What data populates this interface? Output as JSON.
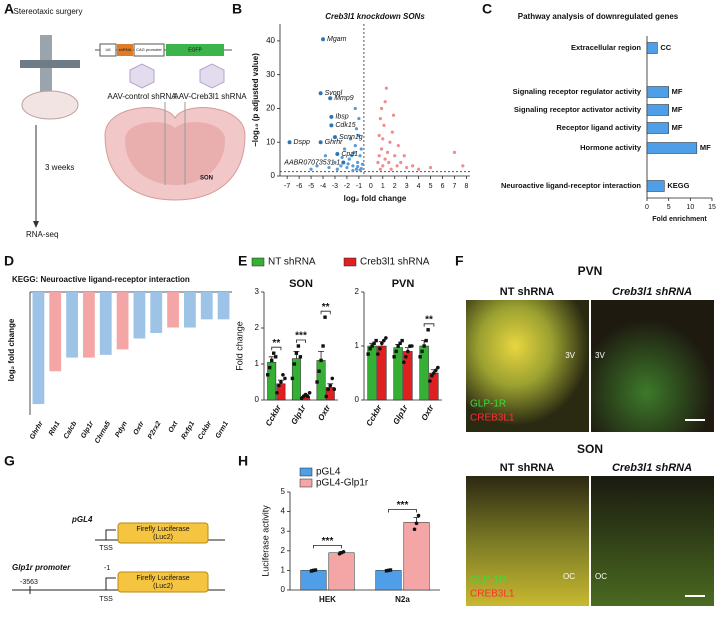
{
  "panel_labels": [
    "A",
    "B",
    "C",
    "D",
    "E",
    "F",
    "G",
    "H"
  ],
  "panel_a": {
    "surgery": "Stereotaxic surgery",
    "duration": "3 weeks",
    "readout": "RNA-seq",
    "construct": [
      "U6",
      "shRNA",
      "CAG promoter",
      "EGFP"
    ],
    "virus_control": "AAV-control shRNA",
    "virus_kd": "AAV-Creb3l1 shRNA",
    "region": "SON"
  },
  "panel_f": {
    "pvn": {
      "title": "PVN",
      "columns": [
        "NT shRNA",
        "Creb3l1 shRNA"
      ],
      "landmarks": [
        "3V",
        "3V"
      ],
      "stains": [
        "GLP-1R",
        "CREB3L1"
      ]
    },
    "son": {
      "title": "SON",
      "columns": [
        "NT shRNA",
        "Creb3l1 shRNA"
      ],
      "landmarks": [
        "OC",
        "OC"
      ],
      "stains": [
        "GLP-1R",
        "CREB3L1"
      ]
    }
  },
  "panel_g": {
    "constructs": [
      {
        "name": "pGL4",
        "site": "TSS",
        "gene": "Firefly Luciferase",
        "subunit": "(Luc2)"
      },
      {
        "name": "Glp1r promoter",
        "start": "-3563",
        "end": "-1",
        "site": "TSS",
        "gene": "Firefly Luciferase",
        "subunit": "(Luc2)"
      }
    ]
  },
  "chart_data": [
    {
      "type": "scatter",
      "title": "Creb3l1 knockdown SONs",
      "xlabel": "log₂ fold change",
      "ylabel": "−log₁₀ (p adjusted value)",
      "xlim": [
        -7.6,
        8.3
      ],
      "ylim": [
        0,
        45
      ],
      "xticks": [
        -7,
        -6,
        -5,
        -4,
        -3,
        -2,
        -1,
        0,
        1,
        2,
        3,
        4,
        5,
        6,
        7,
        8
      ],
      "yticks": [
        0,
        10,
        20,
        30,
        40
      ],
      "threshold_x": -0.58,
      "threshold_y": 1.3,
      "series": [
        {
          "color": "#5b9bd5",
          "x": [
            -1.2,
            -1.5,
            -0.9,
            -2,
            -1.8,
            -1.1,
            -2.5,
            -0.8,
            -1.4,
            -1.3,
            -1.6,
            -2.2,
            -1,
            -1.2,
            -0.9,
            -3,
            -2.8,
            -3.5,
            -1.7,
            -0.7,
            -1,
            -1.5,
            -2.4,
            -1.9,
            -0.8,
            -4.5,
            -5,
            -3.8,
            -1.3,
            -1.1
          ],
          "y": [
            2,
            3,
            1.8,
            2.5,
            5,
            4,
            3,
            2.2,
            7,
            9,
            6,
            8,
            12,
            14,
            6,
            4,
            2,
            2.5,
            11,
            3.5,
            17,
            1.6,
            5.5,
            3.6,
            8,
            3,
            2,
            6,
            20,
            2.8
          ]
        },
        {
          "color": "#f28b8b",
          "x": [
            0.8,
            1,
            1.2,
            0.9,
            1.5,
            0.7,
            1.1,
            1.3,
            0.9,
            1.6,
            2,
            2.2,
            1.4,
            0.8,
            1.8,
            2.5,
            3,
            2.8,
            1.2,
            0.7,
            3.5,
            4,
            5,
            7,
            7.7,
            1.9,
            2.3,
            0.6,
            1,
            1.7
          ],
          "y": [
            2,
            3,
            5,
            8,
            4,
            12,
            15,
            26,
            20,
            10,
            6,
            3,
            7,
            17,
            13,
            4,
            2.5,
            6,
            22,
            6,
            3,
            2,
            2.5,
            7,
            3,
            18,
            9,
            4,
            11,
            2
          ]
        }
      ],
      "genes": {
        "color": "#2e75b6",
        "labels": [
          "Mgam",
          "Svopl",
          "Mmp9",
          "Ibsp",
          "Cdk15",
          "Scnn1g",
          "Ghrhr",
          "Dspp",
          "Cpa1",
          "AABR07073531.1"
        ],
        "x": [
          -4,
          -4.2,
          -3.4,
          -3.3,
          -3.3,
          -3,
          -4.2,
          -6.8,
          -2.8,
          -2.3
        ],
        "y": [
          40.5,
          24.5,
          23,
          17.5,
          15,
          11.5,
          10,
          10,
          6.5,
          4
        ]
      }
    },
    {
      "type": "barh",
      "title": "Pathway analysis of downregulated genes",
      "xlabel": "Fold enrichment",
      "color": "#4f9ee8",
      "categories": [
        "Extracellular region",
        "Signaling receptor regulator activity",
        "Signaling receptor activator activity",
        "Receptor ligand activity",
        "Hormone activity",
        "Neuroactive ligand-receptor interaction"
      ],
      "values": [
        2.4,
        5,
        5,
        5,
        11.5,
        4
      ],
      "tags": [
        "CC",
        "MF",
        "MF",
        "MF",
        "MF",
        "KEGG"
      ],
      "xlim": [
        0,
        15
      ],
      "xticks": [
        0,
        5,
        10,
        15
      ]
    },
    {
      "type": "bar",
      "title": "KEGG: Neuroactive ligand-receptor interaction",
      "ylabel": "log₂ fold change",
      "categories": [
        "Ghrhr",
        "Rln1",
        "Calcb",
        "Glp1r",
        "Chrna5",
        "Pdyn",
        "Oxtr",
        "P2rx2",
        "Oxt",
        "Rxfp1",
        "Cckbr",
        "Grm1"
      ],
      "values": [
        -4.1,
        -2.9,
        -2.4,
        -2.4,
        -2.3,
        -2.1,
        -1.7,
        -1.5,
        -1.3,
        -1.3,
        -1,
        -1
      ],
      "colors": [
        "#9dc3e6",
        "#f4a6a6",
        "#9dc3e6",
        "#f4a6a6",
        "#9dc3e6",
        "#f4a6a6",
        "#9dc3e6",
        "#9dc3e6",
        "#f4a6a6",
        "#9dc3e6",
        "#9dc3e6",
        "#9dc3e6"
      ],
      "ylim": [
        -4.5,
        0
      ]
    },
    {
      "type": "grouped",
      "title": "SON",
      "ylabel": "Fold change",
      "categories": [
        "Cckbr",
        "Glp1r",
        "Oxtr"
      ],
      "ylim": [
        0,
        3
      ],
      "yticks": [
        0,
        1,
        2,
        3
      ],
      "series": [
        {
          "name": "NT shRNA",
          "color": "#35b035",
          "values": [
            1.05,
            1.15,
            1.1
          ],
          "errors": [
            0.15,
            0.2,
            0.25
          ],
          "points": [
            [
              0.7,
              0.9,
              1.1,
              1.3,
              1.2
            ],
            [
              0.6,
              1,
              1.3,
              1.5,
              1.2
            ],
            [
              0.5,
              0.8,
              1.1,
              1.5,
              2.3
            ]
          ]
        },
        {
          "name": "Creb3l1 shRNA",
          "color": "#e02020",
          "values": [
            0.45,
            0.1,
            0.35
          ],
          "errors": [
            0.1,
            0.05,
            0.1
          ],
          "points": [
            [
              0.2,
              0.4,
              0.5,
              0.7,
              0.6
            ],
            [
              0.05,
              0.1,
              0.15,
              0.1,
              0.2
            ],
            [
              0.1,
              0.3,
              0.4,
              0.6,
              0.3
            ]
          ]
        }
      ],
      "significance": [
        "**",
        "***",
        "**"
      ]
    },
    {
      "type": "grouped",
      "title": "PVN",
      "categories": [
        "Cckbr",
        "Glp1r",
        "Oxtr"
      ],
      "ylim": [
        0,
        2
      ],
      "yticks": [
        0,
        1,
        2
      ],
      "series": [
        {
          "color": "#35b035",
          "values": [
            1,
            0.97,
            1
          ],
          "errors": [
            0.05,
            0.06,
            0.1
          ],
          "points": [
            [
              0.85,
              0.95,
              1,
              1.05,
              1.1
            ],
            [
              0.8,
              0.9,
              1,
              1.05,
              1.1
            ],
            [
              0.8,
              0.9,
              1,
              1.1,
              1.3
            ]
          ]
        },
        {
          "color": "#e02020",
          "values": [
            1,
            0.9,
            0.5
          ],
          "errors": [
            0.08,
            0.07,
            0.06
          ],
          "points": [
            [
              0.85,
              0.95,
              1.05,
              1.1,
              1.15
            ],
            [
              0.7,
              0.8,
              0.9,
              1,
              1
            ],
            [
              0.35,
              0.45,
              0.5,
              0.55,
              0.6
            ]
          ]
        }
      ],
      "significance": [
        null,
        null,
        "**"
      ]
    },
    {
      "type": "grouped",
      "ylabel": "Luciferase activity",
      "categories": [
        "HEK",
        "N2a"
      ],
      "ylim": [
        0,
        5
      ],
      "yticks": [
        0,
        1,
        2,
        3,
        4,
        5
      ],
      "series": [
        {
          "name": "pGL4",
          "color": "#4f9ee8",
          "values": [
            1,
            1
          ],
          "errors": [
            0.04,
            0.04
          ],
          "points": [
            [
              0.97,
              1,
              1.02
            ],
            [
              0.98,
              1,
              1.02
            ]
          ]
        },
        {
          "name": "pGL4-Glp1r",
          "color": "#f4a6a6",
          "values": [
            1.9,
            3.45
          ],
          "errors": [
            0.07,
            0.25
          ],
          "points": [
            [
              1.85,
              1.9,
              1.95
            ],
            [
              3.1,
              3.4,
              3.8
            ]
          ]
        }
      ],
      "significance": [
        "***",
        "***"
      ]
    }
  ]
}
